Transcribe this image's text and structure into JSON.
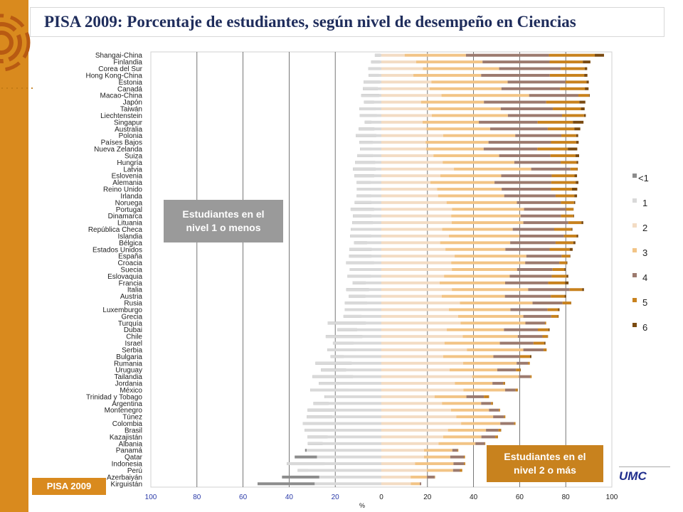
{
  "title": "PISA 2009: Porcentaje de estudiantes, según nivel de desempeño en Ciencias",
  "badge": "PISA 2009",
  "logo_text": "UMC",
  "colors": {
    "accent": "#d98a1e",
    "title": "#1f2d5c"
  },
  "annotations": {
    "below": "Estudiantes en el nivel 1 o menos",
    "above": "Estudiantes en el nivel 2 o más"
  },
  "chart_data": {
    "type": "bar",
    "orientation": "horizontal-diverging",
    "title": "PISA 2009: Porcentaje de estudiantes, según nivel de desempeño en Ciencias",
    "xlabel": "%",
    "xlim": [
      -100,
      100
    ],
    "x_tick_labels": [
      "100",
      "80",
      "60",
      "40",
      "20",
      "0",
      "20",
      "40",
      "60",
      "80",
      "100"
    ],
    "grid": true,
    "legend_position": "right",
    "levels": [
      "<1",
      "1",
      "2",
      "3",
      "4",
      "5",
      "6"
    ],
    "level_colors": [
      "#8c8c8c",
      "#d9d9d9",
      "#f3dcc4",
      "#f2c486",
      "#9c7a6e",
      "#c8821e",
      "#7a4a10"
    ],
    "countries": [
      "Shangai-China",
      "Finlandia",
      "Corea del Sur",
      "Hong Kong-China",
      "Estonia",
      "Canadá",
      "Macao-China",
      "Japón",
      "Taiwán",
      "Liechtenstein",
      "Singapur",
      "Australia",
      "Polonia",
      "Países Bajos",
      "Nueva Zelanda",
      "Suiza",
      "Hungría",
      "Latvia",
      "Eslovenia",
      "Alemania",
      "Reino Unido",
      "Irlanda",
      "Noruega",
      "Portugal",
      "Dinamarca",
      "Lituania",
      "República Checa",
      "Islandia",
      "Bélgica",
      "Estados Unidos",
      "España",
      "Croacia",
      "Suecia",
      "Eslovaquia",
      "Francia",
      "Italia",
      "Austria",
      "Rusia",
      "Luxemburgo",
      "Grecia",
      "Turquía",
      "Dubai",
      "Chile",
      "Israel",
      "Serbia",
      "Bulgaria",
      "Rumania",
      "Uruguay",
      "Tailandia",
      "Jordania",
      "México",
      "Trinidad y Tobago",
      "Argentina",
      "Montenegro",
      "Túnez",
      "Colombia",
      "Brasil",
      "Kazajistán",
      "Albania",
      "Panamá",
      "Qatar",
      "Indonesia",
      "Perú",
      "Azerbaiyán",
      "Kirguistán"
    ],
    "values_below": [
      [
        -0.4,
        -2.8
      ],
      [
        -0.6,
        -4.4
      ],
      [
        -0.6,
        -5.7
      ],
      [
        -1.1,
        -5.5
      ],
      [
        -0.6,
        -7.7
      ],
      [
        -1.5,
        -8.0
      ],
      [
        -0.9,
        -8.7
      ],
      [
        -3.2,
        -7.5
      ],
      [
        -2.3,
        -9.5
      ],
      [
        -1.9,
        -9.4
      ],
      [
        -4.3,
        -7.2
      ],
      [
        -3.0,
        -9.8
      ],
      [
        -2.2,
        -11.1
      ],
      [
        -3.7,
        -9.5
      ],
      [
        -4.2,
        -9.2
      ],
      [
        -3.6,
        -10.5
      ],
      [
        -2.7,
        -11.4
      ],
      [
        -2.5,
        -12.3
      ],
      [
        -3.1,
        -11.7
      ],
      [
        -4.7,
        -10.7
      ],
      [
        -4.5,
        -10.6
      ],
      [
        -4.4,
        -10.7
      ],
      [
        -4.3,
        -11.6
      ],
      [
        -3.2,
        -13.3
      ],
      [
        -4.3,
        -12.3
      ],
      [
        -3.7,
        -12.6
      ],
      [
        -4.0,
        -13.2
      ],
      [
        -4.4,
        -13.5
      ],
      [
        -6.2,
        -11.8
      ],
      [
        -4.2,
        -13.9
      ],
      [
        -4.3,
        -14.0
      ],
      [
        -3.2,
        -15.3
      ],
      [
        -5.3,
        -13.7
      ],
      [
        -4.5,
        -14.7
      ],
      [
        -6.8,
        -12.5
      ],
      [
        -5.4,
        -15.2
      ],
      [
        -6.9,
        -14.1
      ],
      [
        -6.2,
        -15.8
      ],
      [
        -7.9,
        -15.8
      ],
      [
        -8.6,
        -16.4
      ],
      [
        -6.7,
        -23.3
      ],
      [
        -10.5,
        -19.1
      ],
      [
        -8.2,
        -24.1
      ],
      [
        -12.1,
        -21.0
      ],
      [
        -11.0,
        -23.4
      ],
      [
        -16.3,
        -22.0
      ],
      [
        -12.9,
        -28.6
      ],
      [
        -15.3,
        -26.2
      ],
      [
        -12.3,
        -29.9
      ],
      [
        -18.2,
        -27.1
      ],
      [
        -14.2,
        -30.8
      ],
      [
        -24.7,
        -24.6
      ],
      [
        -22.8,
        -29.5
      ],
      [
        -20.5,
        -32.0
      ],
      [
        -21.3,
        -32.4
      ],
      [
        -20.1,
        -34.1
      ],
      [
        -20.8,
        -33.3
      ],
      [
        -23.3,
        -32.1
      ],
      [
        -25.5,
        -31.9
      ],
      [
        -33.1,
        -32.4
      ],
      [
        -37.6,
        -27.9
      ],
      [
        -24.6,
        -41.0
      ],
      [
        -31.7,
        -36.3
      ],
      [
        -43.1,
        -26.9
      ],
      [
        -53.7,
        -28.9
      ]
    ],
    "values_above": [
      [
        10.1,
        26.6,
        36.0,
        19.9,
        4.0
      ],
      [
        15.1,
        28.8,
        29.1,
        14.4,
        3.3
      ],
      [
        18.0,
        33.1,
        26.7,
        10.4,
        1.1
      ],
      [
        13.9,
        29.4,
        29.8,
        14.9,
        1.4
      ],
      [
        21.7,
        33.1,
        25.1,
        9.1,
        1.0
      ],
      [
        20.9,
        31.2,
        25.4,
        10.8,
        1.6
      ],
      [
        26.1,
        38.0,
        21.4,
        4.6,
        0.3
      ],
      [
        17.2,
        27.3,
        27.0,
        14.4,
        2.6
      ],
      [
        20.4,
        31.4,
        22.6,
        12.2,
        1.6
      ],
      [
        21.9,
        33.0,
        23.5,
        9.5,
        0.8
      ],
      [
        17.9,
        24.4,
        25.5,
        15.3,
        4.6
      ],
      [
        19.6,
        27.6,
        25.0,
        11.5,
        2.6
      ],
      [
        26.8,
        31.3,
        20.0,
        6.4,
        0.9
      ],
      [
        19.2,
        27.3,
        27.1,
        10.9,
        1.1
      ],
      [
        19.4,
        25.0,
        23.3,
        13.2,
        4.1
      ],
      [
        22.6,
        28.5,
        22.3,
        10.8,
        1.6
      ],
      [
        26.6,
        31.1,
        20.1,
        6.9,
        0.7
      ],
      [
        31.5,
        33.5,
        17.0,
        3.0,
        0.2
      ],
      [
        25.6,
        26.4,
        21.9,
        9.9,
        1.1
      ],
      [
        21.3,
        27.8,
        24.6,
        10.6,
        1.2
      ],
      [
        24.2,
        28.0,
        21.4,
        9.1,
        2.3
      ],
      [
        24.6,
        28.7,
        22.3,
        8.1,
        1.2
      ],
      [
        28.3,
        30.5,
        19.1,
        5.7,
        0.5
      ],
      [
        30.7,
        31.2,
        18.2,
        3.2,
        0.1
      ],
      [
        30.3,
        30.1,
        17.5,
        5.4,
        0.3
      ],
      [
        30.5,
        31.1,
        19.5,
        5.7,
        0.8
      ],
      [
        26.4,
        30.6,
        18.0,
        7.5,
        0.4
      ],
      [
        29.3,
        30.6,
        19.3,
        5.5,
        0.7
      ],
      [
        25.5,
        30.4,
        19.7,
        7.7,
        0.9
      ],
      [
        27.8,
        26.0,
        19.2,
        8.7,
        1.3
      ],
      [
        31.8,
        31.1,
        15.3,
        3.6,
        0.2
      ],
      [
        30.3,
        32.1,
        14.8,
        3.2,
        0.3
      ],
      [
        30.6,
        28.3,
        15.4,
        5.1,
        0.6
      ],
      [
        27.2,
        28.5,
        18.2,
        6.4,
        0.8
      ],
      [
        25.3,
        28.4,
        18.7,
        7.3,
        1.5
      ],
      [
        30.6,
        33.1,
        18.0,
        5.4,
        0.8
      ],
      [
        26.2,
        27.4,
        19.9,
        6.0,
        0.7
      ],
      [
        34.1,
        31.5,
        13.0,
        3.7,
        0.1
      ],
      [
        29.3,
        26.7,
        16.1,
        4.6,
        0.6
      ],
      [
        33.3,
        28.3,
        12.1,
        3.0,
        0.2
      ],
      [
        34.4,
        28.1,
        8.5,
        0.5,
        0.0
      ],
      [
        28.4,
        24.8,
        14.7,
        4.6,
        0.5
      ],
      [
        35.3,
        23.9,
        10.7,
        2.3,
        0.1
      ],
      [
        27.4,
        24.0,
        14.6,
        4.7,
        0.5
      ],
      [
        37.1,
        24.5,
        8.8,
        1.3,
        0.0
      ],
      [
        26.8,
        21.8,
        11.5,
        4.4,
        0.6
      ],
      [
        35.5,
        23.2,
        5.0,
        0.7,
        0.0
      ],
      [
        29.6,
        20.7,
        8.1,
        1.9,
        0.2
      ],
      [
        39.4,
        20.3,
        4.9,
        0.6,
        0.0
      ],
      [
        31.9,
        16.3,
        4.7,
        0.7,
        0.1
      ],
      [
        35.6,
        18.1,
        4.5,
        0.9,
        0.1
      ],
      [
        23.1,
        13.8,
        7.6,
        2.1,
        0.1
      ],
      [
        26.3,
        17.0,
        4.3,
        0.7,
        0.1
      ],
      [
        30.2,
        16.5,
        4.3,
        0.5,
        0.0
      ],
      [
        32.5,
        16.0,
        4.7,
        0.6,
        0.0
      ],
      [
        34.6,
        17.0,
        6.0,
        0.6,
        0.0
      ],
      [
        28.9,
        16.5,
        5.4,
        1.1,
        0.1
      ],
      [
        26.8,
        16.6,
        6.0,
        1.1,
        0.1
      ],
      [
        24.8,
        16.0,
        4.0,
        0.3,
        0.0
      ],
      [
        18.5,
        12.3,
        2.3,
        0.3,
        0.0
      ],
      [
        18.5,
        11.4,
        5.9,
        0.5,
        0.0
      ],
      [
        14.6,
        16.7,
        4.6,
        0.5,
        0.0
      ],
      [
        19.7,
        11.4,
        3.0,
        1.0,
        0.0
      ],
      [
        12.7,
        7.1,
        3.3,
        0.2,
        0.0
      ],
      [
        12.8,
        3.9,
        0.6,
        0.0,
        0.0
      ]
    ]
  }
}
